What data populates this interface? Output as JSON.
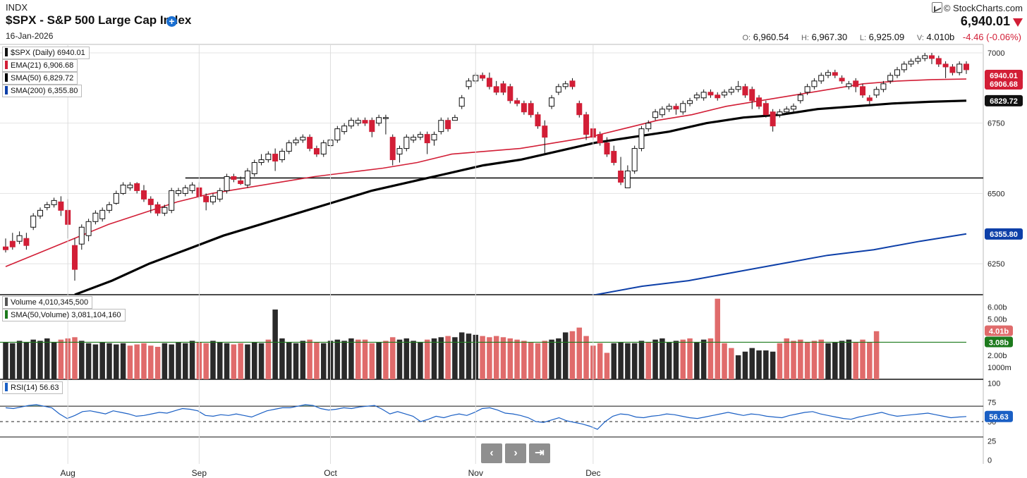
{
  "header": {
    "exchange": "INDX",
    "title": "$SPX - S&P 500 Large Cap Index",
    "date": "16-Jan-2026",
    "copyright": "© StockCharts.com",
    "last": "6,940.01",
    "ohlc": {
      "o_label": "O:",
      "o": "6,960.54",
      "h_label": "H:",
      "h": "6,967.30",
      "l_label": "L:",
      "l": "6,925.09",
      "v_label": "V:",
      "v": "4.010b",
      "change": "-4.46 (-0.06%)"
    }
  },
  "colors": {
    "up": "#ffffff",
    "down": "#d21e36",
    "down_vol": "#e06b6b",
    "black": "#111111",
    "ema": "#d21e36",
    "sma50": "#000000",
    "sma200": "#0d3fa8",
    "vol_sma": "#1d7a1d",
    "rsi": "#1a5fc4"
  },
  "legends": {
    "price": [
      {
        "label": "$SPX (Daily) 6940.01",
        "color": "#111111"
      },
      {
        "label": "EMA(21) 6,906.68",
        "color": "#d21e36"
      },
      {
        "label": "SMA(50) 6,829.72",
        "color": "#000000"
      },
      {
        "label": "SMA(200) 6,355.80",
        "color": "#0d3fa8"
      }
    ],
    "volume": [
      {
        "label": "Volume 4,010,345,500",
        "color": "#555555"
      },
      {
        "label": "SMA(50,Volume) 3,081,104,160",
        "color": "#1d7a1d"
      }
    ],
    "rsi": [
      {
        "label": "RSI(14) 56.63",
        "color": "#1a5fc4"
      }
    ]
  },
  "navigation": {
    "prev": "‹",
    "next": "›",
    "end": "⇥"
  },
  "chart_data": {
    "type": "candlestick",
    "x_axis": {
      "labels": [
        "Aug",
        "Sep",
        "Oct",
        "Nov",
        "Dec"
      ],
      "label_index": [
        9,
        28,
        47,
        68,
        85
      ]
    },
    "price_axis": {
      "ticks": [
        6250,
        6500,
        6750,
        7000
      ],
      "ylim": [
        6140,
        7030
      ]
    },
    "support_level": 6555,
    "candles": [
      [
        6310,
        6300,
        6340,
        6290
      ],
      [
        6330,
        6310,
        6360,
        6300
      ],
      [
        6330,
        6350,
        6365,
        6320
      ],
      [
        6340,
        6315,
        6360,
        6300
      ],
      [
        6380,
        6420,
        6430,
        6370
      ],
      [
        6420,
        6440,
        6450,
        6410
      ],
      [
        6450,
        6460,
        6470,
        6440
      ],
      [
        6460,
        6475,
        6485,
        6450
      ],
      [
        6470,
        6440,
        6490,
        6420
      ],
      [
        6440,
        6390,
        6480,
        6340
      ],
      [
        6315,
        6230,
        6340,
        6190
      ],
      [
        6320,
        6380,
        6390,
        6300
      ],
      [
        6350,
        6400,
        6410,
        6330
      ],
      [
        6400,
        6430,
        6440,
        6390
      ],
      [
        6410,
        6440,
        6450,
        6400
      ],
      [
        6440,
        6460,
        6470,
        6430
      ],
      [
        6465,
        6500,
        6510,
        6460
      ],
      [
        6500,
        6530,
        6540,
        6495
      ],
      [
        6520,
        6530,
        6540,
        6510
      ],
      [
        6535,
        6510,
        6540,
        6500
      ],
      [
        6510,
        6480,
        6530,
        6470
      ],
      [
        6480,
        6460,
        6490,
        6430
      ],
      [
        6460,
        6430,
        6470,
        6420
      ],
      [
        6430,
        6450,
        6460,
        6420
      ],
      [
        6440,
        6510,
        6520,
        6430
      ],
      [
        6500,
        6510,
        6520,
        6490
      ],
      [
        6500,
        6520,
        6530,
        6490
      ],
      [
        6510,
        6530,
        6540,
        6500
      ],
      [
        6520,
        6490,
        6540,
        6480
      ],
      [
        6490,
        6470,
        6500,
        6440
      ],
      [
        6470,
        6490,
        6500,
        6460
      ],
      [
        6480,
        6510,
        6520,
        6470
      ],
      [
        6510,
        6560,
        6570,
        6500
      ],
      [
        6560,
        6550,
        6570,
        6540
      ],
      [
        6545,
        6535,
        6560,
        6530
      ],
      [
        6530,
        6580,
        6590,
        6520
      ],
      [
        6570,
        6610,
        6620,
        6560
      ],
      [
        6610,
        6620,
        6640,
        6600
      ],
      [
        6620,
        6640,
        6650,
        6610
      ],
      [
        6640,
        6615,
        6660,
        6580
      ],
      [
        6620,
        6650,
        6660,
        6610
      ],
      [
        6650,
        6680,
        6690,
        6640
      ],
      [
        6680,
        6690,
        6700,
        6670
      ],
      [
        6690,
        6700,
        6710,
        6680
      ],
      [
        6700,
        6660,
        6710,
        6650
      ],
      [
        6660,
        6640,
        6670,
        6630
      ],
      [
        6640,
        6680,
        6690,
        6630
      ],
      [
        6670,
        6690,
        6700,
        6660
      ],
      [
        6690,
        6730,
        6740,
        6680
      ],
      [
        6720,
        6740,
        6750,
        6710
      ],
      [
        6740,
        6760,
        6770,
        6730
      ],
      [
        6750,
        6760,
        6770,
        6740
      ],
      [
        6760,
        6750,
        6770,
        6740
      ],
      [
        6760,
        6720,
        6770,
        6700
      ],
      [
        6750,
        6770,
        6780,
        6740
      ],
      [
        6770,
        6770,
        6780,
        6710
      ],
      [
        6700,
        6620,
        6710,
        6600
      ],
      [
        6640,
        6660,
        6670,
        6610
      ],
      [
        6660,
        6700,
        6710,
        6650
      ],
      [
        6690,
        6700,
        6710,
        6680
      ],
      [
        6700,
        6710,
        6720,
        6690
      ],
      [
        6710,
        6680,
        6720,
        6640
      ],
      [
        6690,
        6710,
        6720,
        6670
      ],
      [
        6720,
        6760,
        6770,
        6710
      ],
      [
        6760,
        6730,
        6770,
        6720
      ],
      [
        6760,
        6770,
        6780,
        6760
      ],
      [
        6810,
        6840,
        6850,
        6800
      ],
      [
        6880,
        6900,
        6910,
        6870
      ],
      [
        6900,
        6920,
        6930,
        6890
      ],
      [
        6920,
        6910,
        6930,
        6900
      ],
      [
        6910,
        6880,
        6930,
        6870
      ],
      [
        6880,
        6860,
        6900,
        6850
      ],
      [
        6890,
        6860,
        6900,
        6850
      ],
      [
        6880,
        6830,
        6890,
        6820
      ],
      [
        6830,
        6820,
        6840,
        6810
      ],
      [
        6820,
        6790,
        6830,
        6780
      ],
      [
        6820,
        6780,
        6830,
        6770
      ],
      [
        6780,
        6740,
        6790,
        6730
      ],
      [
        6740,
        6700,
        6760,
        6640
      ],
      [
        6810,
        6840,
        6850,
        6800
      ],
      [
        6860,
        6880,
        6890,
        6850
      ],
      [
        6880,
        6890,
        6900,
        6870
      ],
      [
        6900,
        6880,
        6910,
        6870
      ],
      [
        6820,
        6780,
        6830,
        6770
      ],
      [
        6780,
        6710,
        6790,
        6690
      ],
      [
        6730,
        6700,
        6750,
        6690
      ],
      [
        6710,
        6680,
        6720,
        6670
      ],
      [
        6680,
        6640,
        6700,
        6630
      ],
      [
        6650,
        6610,
        6670,
        6600
      ],
      [
        6580,
        6540,
        6630,
        6530
      ],
      [
        6520,
        6580,
        6600,
        6520
      ],
      [
        6580,
        6660,
        6670,
        6570
      ],
      [
        6660,
        6730,
        6740,
        6650
      ],
      [
        6730,
        6750,
        6760,
        6720
      ],
      [
        6770,
        6790,
        6800,
        6760
      ],
      [
        6780,
        6800,
        6810,
        6770
      ],
      [
        6800,
        6810,
        6820,
        6790
      ],
      [
        6810,
        6800,
        6820,
        6780
      ],
      [
        6790,
        6820,
        6830,
        6780
      ],
      [
        6820,
        6830,
        6840,
        6810
      ],
      [
        6840,
        6850,
        6860,
        6830
      ],
      [
        6840,
        6860,
        6870,
        6830
      ],
      [
        6860,
        6850,
        6870,
        6840
      ],
      [
        6850,
        6840,
        6860,
        6830
      ],
      [
        6850,
        6860,
        6870,
        6840
      ],
      [
        6860,
        6870,
        6880,
        6850
      ],
      [
        6870,
        6880,
        6900,
        6860
      ],
      [
        6880,
        6850,
        6890,
        6840
      ],
      [
        6870,
        6830,
        6880,
        6800
      ],
      [
        6840,
        6810,
        6850,
        6800
      ],
      [
        6820,
        6780,
        6830,
        6770
      ],
      [
        6790,
        6740,
        6800,
        6720
      ],
      [
        6780,
        6790,
        6800,
        6770
      ],
      [
        6790,
        6800,
        6810,
        6780
      ],
      [
        6800,
        6810,
        6820,
        6790
      ],
      [
        6830,
        6850,
        6860,
        6820
      ],
      [
        6860,
        6880,
        6890,
        6850
      ],
      [
        6880,
        6900,
        6910,
        6870
      ],
      [
        6900,
        6920,
        6930,
        6890
      ],
      [
        6920,
        6930,
        6940,
        6910
      ],
      [
        6930,
        6920,
        6940,
        6910
      ],
      [
        6910,
        6900,
        6920,
        6890
      ],
      [
        6880,
        6890,
        6900,
        6870
      ],
      [
        6900,
        6880,
        6910,
        6860
      ],
      [
        6880,
        6850,
        6890,
        6840
      ],
      [
        6840,
        6830,
        6850,
        6810
      ],
      [
        6850,
        6870,
        6880,
        6840
      ],
      [
        6870,
        6890,
        6900,
        6860
      ],
      [
        6900,
        6920,
        6930,
        6890
      ],
      [
        6920,
        6940,
        6950,
        6910
      ],
      [
        6940,
        6960,
        6970,
        6930
      ],
      [
        6960,
        6970,
        6980,
        6950
      ],
      [
        6970,
        6980,
        6990,
        6960
      ],
      [
        6980,
        6990,
        7000,
        6970
      ],
      [
        6990,
        6980,
        7000,
        6960
      ],
      [
        6980,
        6960,
        6990,
        6950
      ],
      [
        6960,
        6950,
        6970,
        6910
      ],
      [
        6950,
        6930,
        6960,
        6920
      ],
      [
        6930,
        6960,
        6970,
        6920
      ],
      [
        6960,
        6940,
        6970,
        6925
      ]
    ],
    "ema21": [
      6240,
      6290,
      6340,
      6390,
      6430,
      6470,
      6500,
      6520,
      6540,
      6560,
      6575,
      6590,
      6610,
      6640,
      6650,
      6660,
      6680,
      6700,
      6730,
      6760,
      6780,
      6810,
      6830,
      6850,
      6870,
      6890,
      6900,
      6905,
      6907
    ],
    "sma50": [
      6140,
      6190,
      6250,
      6300,
      6350,
      6390,
      6430,
      6470,
      6510,
      6540,
      6570,
      6600,
      6620,
      6650,
      6680,
      6700,
      6720,
      6750,
      6770,
      6780,
      6800,
      6810,
      6820,
      6826,
      6830
    ],
    "sma200_anchor": 6355.8,
    "sma200": [
      6090,
      6120,
      6140,
      6170,
      6190,
      6220,
      6250,
      6280,
      6300,
      6330,
      6356
    ],
    "volume": {
      "ticks": [
        "1000m",
        "2.00b",
        "3.00b",
        "4.00b",
        "5.00b",
        "6.00b"
      ],
      "tick_values": [
        1.0,
        2.0,
        3.0,
        4.0,
        5.0,
        6.0
      ],
      "ylim": [
        0,
        6.8
      ],
      "last": "4.01b",
      "sma_last": "3.08b",
      "sma_value": 3.08,
      "values": [
        3.1,
        3.0,
        3.2,
        3.1,
        3.3,
        3.2,
        3.4,
        3.1,
        3.3,
        3.4,
        3.5,
        3.2,
        3.0,
        2.9,
        3.1,
        3.0,
        2.9,
        3.0,
        2.8,
        2.9,
        3.0,
        2.8,
        2.7,
        3.0,
        2.9,
        3.1,
        3.0,
        3.2,
        3.1,
        3.0,
        3.2,
        3.1,
        3.0,
        2.9,
        3.0,
        2.9,
        3.1,
        3.0,
        3.3,
        5.8,
        3.4,
        3.1,
        3.0,
        3.2,
        3.3,
        3.1,
        3.0,
        3.2,
        3.3,
        3.2,
        3.4,
        3.3,
        3.3,
        3.0,
        3.1,
        3.2,
        3.5,
        3.3,
        3.4,
        3.2,
        3.1,
        3.3,
        3.4,
        3.5,
        3.6,
        3.5,
        3.9,
        3.8,
        3.7,
        3.6,
        3.5,
        3.6,
        3.5,
        3.4,
        3.3,
        3.2,
        3.1,
        3.0,
        3.2,
        3.3,
        3.4,
        3.9,
        4.0,
        4.3,
        3.6,
        2.8,
        3.0,
        2.2,
        3.0,
        3.1,
        3.0,
        3.0,
        3.2,
        3.1,
        3.3,
        3.4,
        3.1,
        3.2,
        3.3,
        3.4,
        3.1,
        3.3,
        3.4,
        6.7,
        3.0,
        2.6,
        2.0,
        2.3,
        2.6,
        2.4,
        2.4,
        2.3,
        3.0,
        3.4,
        3.2,
        3.3,
        3.1,
        3.2,
        3.3,
        3.0,
        3.1,
        3.2,
        3.3,
        3.1,
        3.3,
        3.1,
        4.0
      ],
      "down_flags": [
        0,
        0,
        0,
        0,
        0,
        0,
        0,
        0,
        1,
        1,
        1,
        0,
        0,
        0,
        0,
        0,
        0,
        0,
        1,
        1,
        1,
        1,
        1,
        0,
        0,
        0,
        0,
        0,
        1,
        1,
        0,
        0,
        0,
        1,
        1,
        0,
        0,
        0,
        1,
        0,
        0,
        0,
        0,
        0,
        1,
        1,
        0,
        0,
        0,
        0,
        0,
        1,
        1,
        1,
        0,
        1,
        1,
        0,
        0,
        0,
        0,
        1,
        0,
        0,
        1,
        0,
        0,
        0,
        0,
        1,
        1,
        1,
        1,
        1,
        1,
        1,
        1,
        1,
        1,
        0,
        0,
        0,
        1,
        1,
        1,
        1,
        1,
        1,
        0,
        0,
        0,
        0,
        0,
        1,
        0,
        0,
        0,
        0,
        1,
        1,
        0,
        0,
        1,
        1,
        1,
        1,
        0,
        0,
        0,
        0,
        0,
        0,
        1,
        1,
        1,
        1,
        1,
        1,
        1,
        0,
        0,
        0,
        0,
        1,
        1,
        1,
        1,
        0,
        1
      ]
    },
    "rsi": {
      "ticks": [
        0,
        25,
        50,
        75,
        100
      ],
      "ylim": [
        -5,
        105
      ],
      "overbought": 70,
      "oversold": 30,
      "midline": 50,
      "last": "56.63",
      "values": [
        68,
        67,
        69,
        71,
        72,
        70,
        68,
        60,
        54,
        58,
        63,
        64,
        62,
        60,
        64,
        62,
        60,
        57,
        58,
        60,
        62,
        61,
        64,
        67,
        66,
        64,
        58,
        57,
        59,
        58,
        60,
        58,
        56,
        60,
        64,
        66,
        68,
        68,
        70,
        72,
        71,
        67,
        65,
        66,
        68,
        67,
        69,
        70,
        71,
        66,
        60,
        63,
        60,
        57,
        50,
        53,
        57,
        55,
        58,
        60,
        58,
        62,
        67,
        68,
        65,
        61,
        60,
        58,
        55,
        50,
        49,
        52,
        55,
        51,
        49,
        47,
        44,
        40,
        50,
        57,
        60,
        59,
        56,
        55,
        57,
        58,
        60,
        59,
        57,
        55,
        54,
        56,
        58,
        60,
        62,
        60,
        58,
        60,
        59,
        57,
        56,
        55,
        58,
        60,
        62,
        63,
        60,
        58,
        56,
        54,
        53,
        56,
        58,
        60,
        62,
        59,
        57,
        58,
        59,
        60,
        61,
        59,
        57,
        55,
        56,
        56.63
      ]
    }
  }
}
